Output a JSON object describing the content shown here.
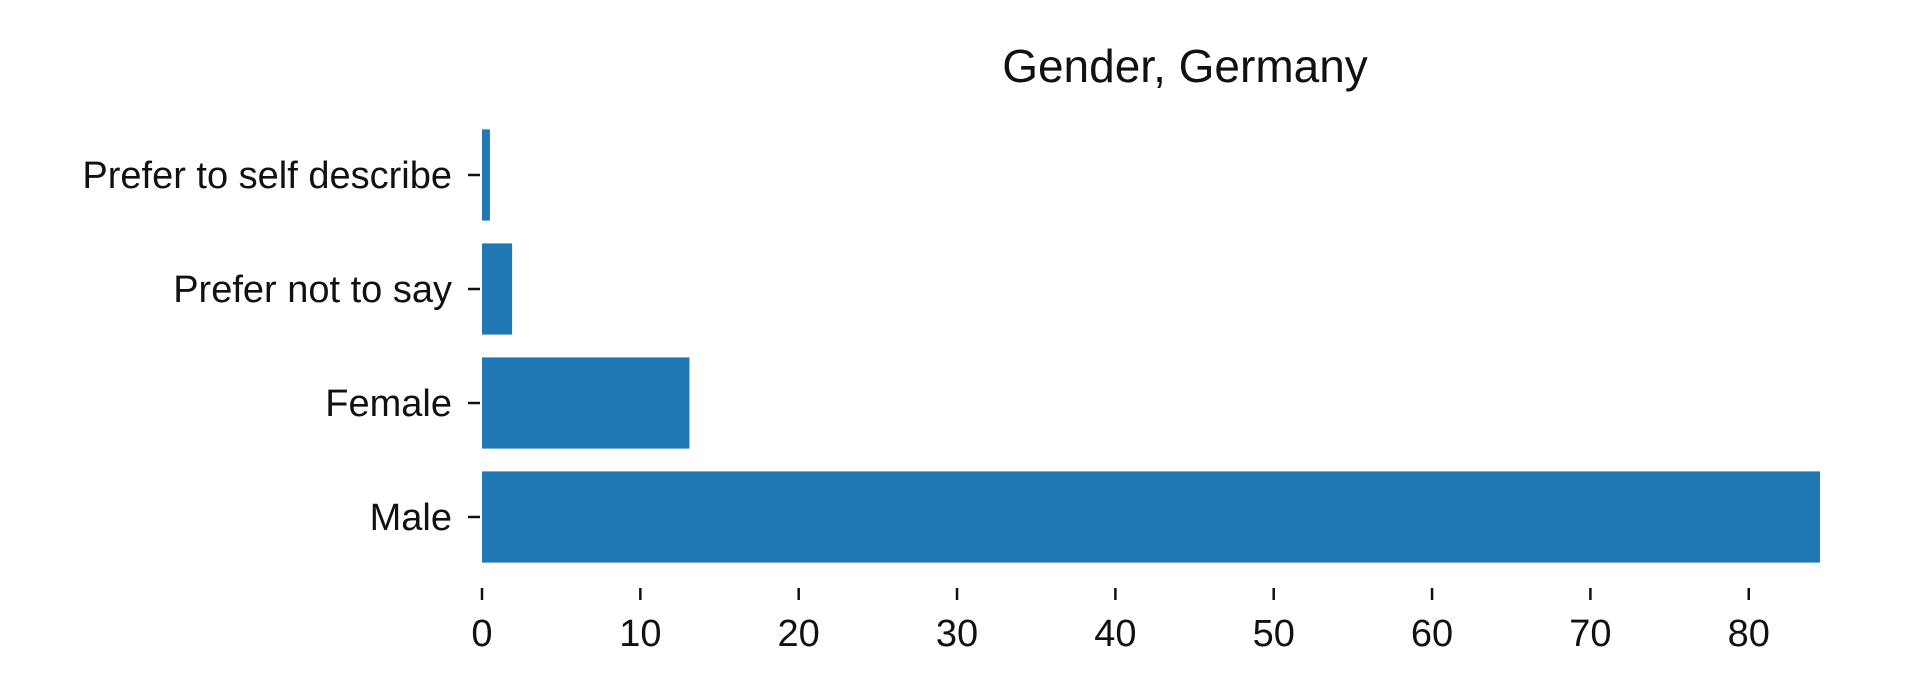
{
  "chart_data": {
    "type": "bar",
    "orientation": "horizontal",
    "title": "Gender, Germany",
    "xlabel": "",
    "ylabel": "",
    "categories": [
      "Male",
      "Female",
      "Prefer not to say",
      "Prefer to self describe"
    ],
    "values": [
      84.5,
      13.1,
      1.9,
      0.5
    ],
    "xlim": [
      0,
      84.5
    ],
    "xticks": [
      0,
      10,
      20,
      30,
      40,
      50,
      60,
      70,
      80
    ],
    "grid": false,
    "legend": "none",
    "bar_color": "#1f77b4"
  }
}
